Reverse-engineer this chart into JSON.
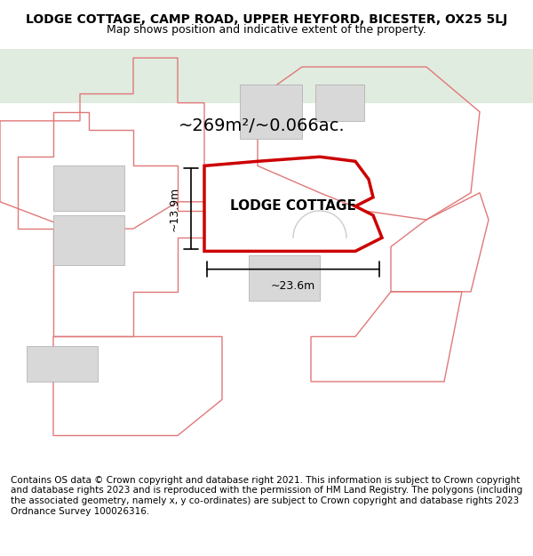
{
  "title": "LODGE COTTAGE, CAMP ROAD, UPPER HEYFORD, BICESTER, OX25 5LJ",
  "subtitle": "Map shows position and indicative extent of the property.",
  "footer": "Contains OS data © Crown copyright and database right 2021. This information is subject to Crown copyright and database rights 2023 and is reproduced with the permission of HM Land Registry. The polygons (including the associated geometry, namely x, y co-ordinates) are subject to Crown copyright and database rights 2023 Ordnance Survey 100026316.",
  "area_text": "~269m²/~0.066ac.",
  "label_text": "LODGE COTTAGE",
  "dim_width": "~23.6m",
  "dim_height": "~13.9m",
  "bg_map_color": "#f5f5f0",
  "bg_top_color": "#e8ede8",
  "border_color": "#cccccc",
  "main_polygon_color": "#cc0000",
  "other_polygon_color": "#f08080",
  "building_fill": "#d8d8d8",
  "title_fontsize": 10,
  "subtitle_fontsize": 9,
  "footer_fontsize": 7.5
}
